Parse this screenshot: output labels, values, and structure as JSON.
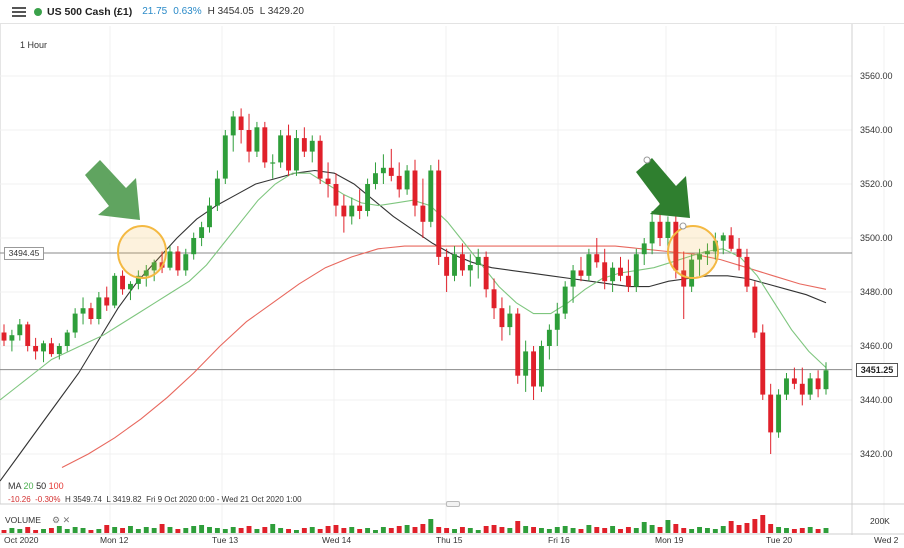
{
  "header": {
    "instrument": "US 500 Cash (£1)",
    "change": "21.75",
    "change_pct": "0.63%",
    "high": "H 3454.05",
    "low": "L 3429.20"
  },
  "timeframe": "1 Hour",
  "price_axis": [
    "3560.00",
    "3540.00",
    "3520.00",
    "3500.00",
    "3480.00",
    "3460.00",
    "3440.00",
    "3420.00"
  ],
  "current_price_label": "3451.25",
  "crosshair_price_label": "3494.45",
  "moving_averages": {
    "label": "MA",
    "p1": "20",
    "p2": "50",
    "p3": "100"
  },
  "stats": {
    "change": "-10.26",
    "change_pct": "-0.30%",
    "high": "H 3549.74",
    "low": "L 3419.82",
    "range": "Fri 9 Oct 2020 0:00 - Wed 21 Oct 2020 1:00"
  },
  "volume": {
    "label": "VOLUME",
    "scale": "200K"
  },
  "date_axis": [
    "Oct 2020",
    "Mon 12",
    "Tue 13",
    "Wed 14",
    "Thu 15",
    "Fri 16",
    "Mon 19",
    "Tue 20",
    "Wed 2"
  ],
  "colors": {
    "up": "#2e9e3a",
    "down": "#e0202a",
    "ma20": "#7fc67f",
    "ma50": "#333333",
    "ma100": "#e8685e",
    "highlight": "#f4b942",
    "arrow": "#3d8f3d"
  },
  "chart_data": {
    "type": "candlestick",
    "ylim": [
      3405,
      3575
    ],
    "yticks": [
      3420,
      3440,
      3460,
      3480,
      3500,
      3520,
      3540,
      3560
    ],
    "horizontal_lines": [
      3494.45,
      3451.25
    ],
    "candles": [
      [
        3465,
        3468,
        3460,
        3462
      ],
      [
        3462,
        3466,
        3458,
        3464
      ],
      [
        3464,
        3470,
        3462,
        3468
      ],
      [
        3468,
        3469,
        3458,
        3460
      ],
      [
        3460,
        3463,
        3455,
        3458
      ],
      [
        3458,
        3462,
        3454,
        3461
      ],
      [
        3461,
        3463,
        3456,
        3457
      ],
      [
        3457,
        3461,
        3455,
        3460
      ],
      [
        3460,
        3466,
        3458,
        3465
      ],
      [
        3465,
        3474,
        3463,
        3472
      ],
      [
        3472,
        3478,
        3468,
        3474
      ],
      [
        3474,
        3476,
        3468,
        3470
      ],
      [
        3470,
        3480,
        3468,
        3478
      ],
      [
        3478,
        3482,
        3473,
        3475
      ],
      [
        3475,
        3487,
        3474,
        3486
      ],
      [
        3486,
        3488,
        3479,
        3481
      ],
      [
        3481,
        3484,
        3477,
        3483
      ],
      [
        3483,
        3488,
        3481,
        3486
      ],
      [
        3486,
        3490,
        3482,
        3488
      ],
      [
        3488,
        3492,
        3484,
        3491
      ],
      [
        3491,
        3495,
        3487,
        3489
      ],
      [
        3489,
        3497,
        3488,
        3495
      ],
      [
        3495,
        3497,
        3486,
        3488
      ],
      [
        3488,
        3496,
        3486,
        3494
      ],
      [
        3494,
        3502,
        3492,
        3500
      ],
      [
        3500,
        3506,
        3497,
        3504
      ],
      [
        3504,
        3515,
        3502,
        3512
      ],
      [
        3512,
        3525,
        3510,
        3522
      ],
      [
        3522,
        3540,
        3520,
        3538
      ],
      [
        3538,
        3547,
        3532,
        3545
      ],
      [
        3545,
        3548,
        3535,
        3540
      ],
      [
        3540,
        3546,
        3528,
        3532
      ],
      [
        3532,
        3543,
        3530,
        3541
      ],
      [
        3541,
        3543,
        3526,
        3528
      ],
      [
        3528,
        3531,
        3522,
        3528
      ],
      [
        3528,
        3540,
        3526,
        3538
      ],
      [
        3538,
        3542,
        3523,
        3525
      ],
      [
        3525,
        3540,
        3523,
        3537
      ],
      [
        3537,
        3541,
        3530,
        3532
      ],
      [
        3532,
        3538,
        3528,
        3536
      ],
      [
        3536,
        3538,
        3520,
        3522
      ],
      [
        3522,
        3528,
        3515,
        3520
      ],
      [
        3520,
        3524,
        3508,
        3512
      ],
      [
        3512,
        3516,
        3502,
        3508
      ],
      [
        3508,
        3515,
        3505,
        3512
      ],
      [
        3512,
        3518,
        3507,
        3510
      ],
      [
        3510,
        3522,
        3508,
        3520
      ],
      [
        3520,
        3528,
        3518,
        3524
      ],
      [
        3524,
        3531,
        3520,
        3526
      ],
      [
        3526,
        3533,
        3521,
        3523
      ],
      [
        3523,
        3528,
        3515,
        3518
      ],
      [
        3518,
        3527,
        3516,
        3525
      ],
      [
        3525,
        3529,
        3508,
        3512
      ],
      [
        3512,
        3522,
        3500,
        3506
      ],
      [
        3506,
        3527,
        3504,
        3525
      ],
      [
        3525,
        3529,
        3490,
        3493
      ],
      [
        3493,
        3496,
        3480,
        3486
      ],
      [
        3486,
        3497,
        3484,
        3494
      ],
      [
        3494,
        3498,
        3486,
        3488
      ],
      [
        3488,
        3494,
        3482,
        3490
      ],
      [
        3490,
        3496,
        3485,
        3493
      ],
      [
        3493,
        3495,
        3478,
        3481
      ],
      [
        3481,
        3485,
        3470,
        3474
      ],
      [
        3474,
        3478,
        3462,
        3467
      ],
      [
        3467,
        3475,
        3464,
        3472
      ],
      [
        3472,
        3474,
        3446,
        3449
      ],
      [
        3449,
        3462,
        3443,
        3458
      ],
      [
        3458,
        3460,
        3440,
        3445
      ],
      [
        3445,
        3462,
        3443,
        3460
      ],
      [
        3460,
        3468,
        3455,
        3466
      ],
      [
        3466,
        3476,
        3460,
        3472
      ],
      [
        3472,
        3484,
        3470,
        3482
      ],
      [
        3482,
        3490,
        3476,
        3488
      ],
      [
        3488,
        3493,
        3484,
        3486
      ],
      [
        3486,
        3496,
        3484,
        3494
      ],
      [
        3494,
        3500,
        3489,
        3491
      ],
      [
        3491,
        3496,
        3481,
        3484
      ],
      [
        3484,
        3491,
        3480,
        3489
      ],
      [
        3489,
        3493,
        3484,
        3486
      ],
      [
        3486,
        3492,
        3480,
        3482
      ],
      [
        3482,
        3496,
        3480,
        3494
      ],
      [
        3494,
        3500,
        3490,
        3498
      ],
      [
        3498,
        3510,
        3494,
        3506
      ],
      [
        3506,
        3516,
        3497,
        3500
      ],
      [
        3500,
        3508,
        3494,
        3506
      ],
      [
        3506,
        3508,
        3485,
        3488
      ],
      [
        3488,
        3495,
        3470,
        3482
      ],
      [
        3482,
        3494,
        3480,
        3492
      ],
      [
        3492,
        3496,
        3486,
        3494
      ],
      [
        3494,
        3498,
        3490,
        3495
      ],
      [
        3495,
        3502,
        3492,
        3499
      ],
      [
        3499,
        3502,
        3494,
        3501
      ],
      [
        3501,
        3504,
        3495,
        3496
      ],
      [
        3496,
        3500,
        3488,
        3493
      ],
      [
        3493,
        3496,
        3480,
        3482
      ],
      [
        3482,
        3484,
        3463,
        3465
      ],
      [
        3465,
        3468,
        3440,
        3442
      ],
      [
        3442,
        3446,
        3420,
        3428
      ],
      [
        3428,
        3444,
        3426,
        3442
      ],
      [
        3442,
        3450,
        3440,
        3448
      ],
      [
        3448,
        3452,
        3444,
        3446
      ],
      [
        3446,
        3452,
        3438,
        3442
      ],
      [
        3442,
        3450,
        3440,
        3448
      ],
      [
        3448,
        3451,
        3441,
        3444
      ],
      [
        3444,
        3454,
        3442,
        3451
      ]
    ],
    "ma20": [
      3440,
      3445,
      3450,
      3455,
      3458,
      3461,
      3464,
      3468,
      3472,
      3476,
      3480,
      3484,
      3490,
      3498,
      3506,
      3514,
      3520,
      3524,
      3524,
      3520,
      3516,
      3513,
      3512,
      3513,
      3514,
      3512,
      3506,
      3498,
      3490,
      3482,
      3476,
      3472,
      3472,
      3476,
      3481,
      3485,
      3487,
      3488,
      3489,
      3491,
      3493,
      3495,
      3496,
      3493,
      3486,
      3476,
      3466,
      3458,
      3452
    ],
    "ma50": [
      3410,
      3420,
      3430,
      3440,
      3450,
      3462,
      3474,
      3484,
      3492,
      3500,
      3507,
      3512,
      3516,
      3520,
      3522,
      3524,
      3525,
      3524,
      3520,
      3514,
      3508,
      3503,
      3498,
      3494,
      3491,
      3489,
      3488,
      3487,
      3486,
      3485,
      3484,
      3483,
      3482,
      3482,
      3484,
      3485,
      3486,
      3486,
      3485,
      3483,
      3481,
      3479,
      3476
    ],
    "ma100": [
      3415,
      3420,
      3426,
      3433,
      3441,
      3450,
      3460,
      3469,
      3476,
      3483,
      3489,
      3493,
      3496,
      3497,
      3497,
      3497,
      3497,
      3497,
      3497,
      3497,
      3497,
      3497,
      3496,
      3495,
      3494,
      3492,
      3489,
      3486,
      3483,
      3481
    ]
  }
}
